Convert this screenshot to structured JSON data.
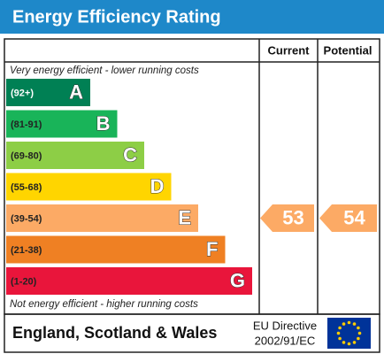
{
  "title": "Energy Efficiency Rating",
  "columns": [
    "Current",
    "Potential"
  ],
  "top_note": "Very energy efficient - lower running costs",
  "bottom_note": "Not energy efficient - higher running costs",
  "bands": [
    {
      "range": "(92+)",
      "letter": "A",
      "color": "#008054"
    },
    {
      "range": "(81-91)",
      "letter": "B",
      "color": "#19b459"
    },
    {
      "range": "(69-80)",
      "letter": "C",
      "color": "#8dce46"
    },
    {
      "range": "(55-68)",
      "letter": "D",
      "color": "#ffd500"
    },
    {
      "range": "(39-54)",
      "letter": "E",
      "color": "#fcaa65"
    },
    {
      "range": "(21-38)",
      "letter": "F",
      "color": "#ef8023"
    },
    {
      "range": "(1-20)",
      "letter": "G",
      "color": "#e9153b"
    }
  ],
  "current": {
    "value": 53,
    "band": 4
  },
  "potential": {
    "value": 54,
    "band": 4
  },
  "footer": {
    "region": "England, Scotland & Wales",
    "directive": [
      "EU Directive",
      "2002/91/EC"
    ]
  }
}
